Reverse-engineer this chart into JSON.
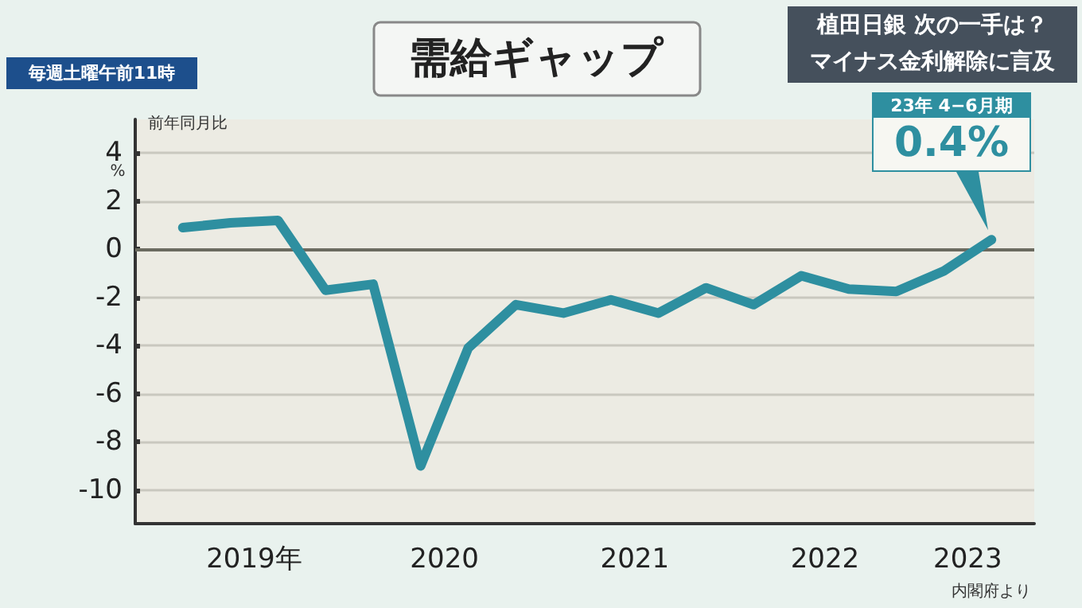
{
  "chart_data": {
    "type": "line",
    "title": "需給ギャップ",
    "ylabel": "前年同月比",
    "annotations": [
      "植田日銀 次の一手は？",
      "マイナス金利解除に言及",
      "毎週土曜午前11時",
      "%",
      "内閣府より",
      "23年 4−6月期",
      "0.4%"
    ],
    "x": [
      2019.125,
      2019.375,
      2019.625,
      2019.875,
      2020.125,
      2020.375,
      2020.625,
      2020.875,
      2021.125,
      2021.375,
      2021.625,
      2021.875,
      2022.125,
      2022.375,
      2022.625,
      2022.875,
      2023.125,
      2023.375
    ],
    "series": [
      {
        "color": "#2e8fa0",
        "values": [
          0.9,
          1.1,
          1.2,
          -1.7,
          -1.45,
          -9.0,
          -4.1,
          -2.3,
          -2.65,
          -2.1,
          -2.65,
          -1.6,
          -2.3,
          -1.1,
          -1.65,
          -1.75,
          -0.9,
          0.4
        ]
      }
    ],
    "xlim": [
      2018.875,
      2023.6
    ],
    "xticks": [
      {
        "value": 2019.5,
        "label": "2019年"
      },
      {
        "value": 2020.5,
        "label": "2020"
      },
      {
        "value": 2021.5,
        "label": "2021"
      },
      {
        "value": 2022.5,
        "label": "2022"
      },
      {
        "value": 2023.25,
        "label": "2023"
      }
    ],
    "ylim": [
      -11.4,
      5.4
    ],
    "yticks": [
      -10,
      -8,
      -6,
      -4,
      -2,
      0,
      2,
      4
    ],
    "ref_lines": [
      {
        "axis": "y",
        "value": 0,
        "color": "#6b6b60"
      }
    ],
    "grid": "y",
    "marker": "none",
    "line_style": "solid"
  }
}
